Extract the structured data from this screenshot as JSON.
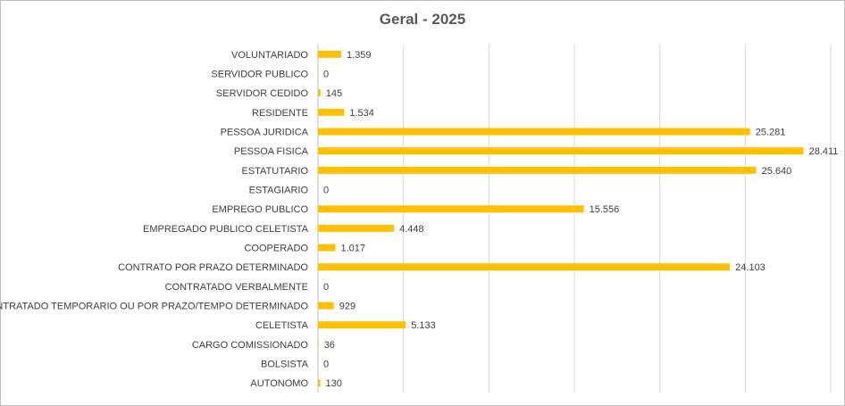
{
  "chart_data": {
    "type": "bar",
    "orientation": "horizontal",
    "title": "Geral - 2025",
    "xlabel": "",
    "ylabel": "",
    "xlim": [
      0,
      30000
    ],
    "grid": "vertical",
    "legend": "none",
    "bar_color": "#FFC000",
    "grid_color": "#d9d9d9",
    "categories": [
      "VOLUNTARIADO",
      "SERVIDOR PUBLICO",
      "SERVIDOR CEDIDO",
      "RESIDENTE",
      "PESSOA JURIDICA",
      "PESSOA FISICA",
      "ESTATUTARIO",
      "ESTAGIARIO",
      "EMPREGO PUBLICO",
      "EMPREGADO PUBLICO CELETISTA",
      "COOPERADO",
      "CONTRATO POR PRAZO DETERMINADO",
      "CONTRATADO VERBALMENTE",
      "CONTRATADO TEMPORARIO OU POR PRAZO/TEMPO DETERMINADO",
      "CELETISTA",
      "CARGO COMISSIONADO",
      "BOLSISTA",
      "AUTONOMO"
    ],
    "values": [
      1359,
      0,
      145,
      1534,
      25281,
      28411,
      25640,
      0,
      15556,
      4448,
      1017,
      24103,
      0,
      929,
      5133,
      36,
      0,
      130
    ],
    "value_labels": [
      "1.359",
      "0",
      "145",
      "1.534",
      "25.281",
      "28.411",
      "25.640",
      "0",
      "15.556",
      "4.448",
      "1.017",
      "24.103",
      "0",
      "929",
      "5.133",
      "36",
      "0",
      "130"
    ]
  }
}
